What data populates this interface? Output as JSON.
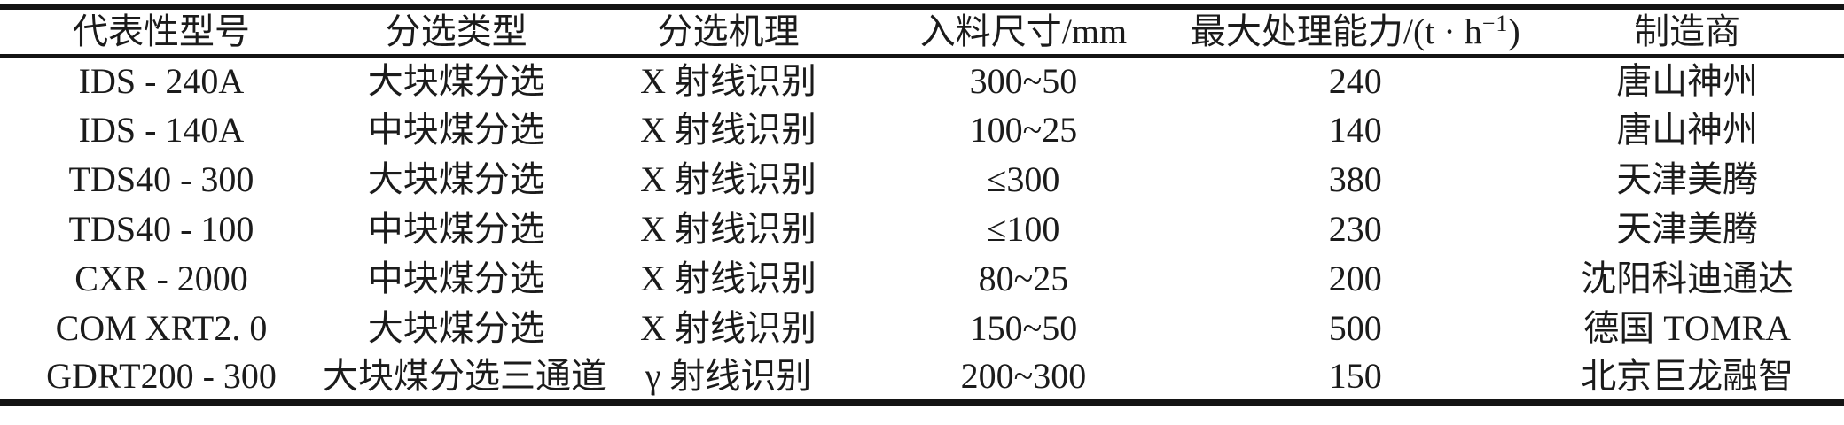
{
  "theme": {
    "rule_color": "#141414",
    "text_color": "#1b1b1b",
    "background_color": "#ffffff"
  },
  "table": {
    "header": {
      "model": "代表性型号",
      "sort_type": "分选类型",
      "mechanism": "分选机理",
      "feed_size": "入料尺寸/mm",
      "capacity_prefix": "最大处理能力/(t · h",
      "capacity_sup": "−1",
      "capacity_suffix": ")",
      "manufacturer": "制造商"
    },
    "rows": [
      [
        "IDS - 240A",
        "大块煤分选",
        "X 射线识别",
        "300~50",
        "240",
        "唐山神州"
      ],
      [
        "IDS - 140A",
        "中块煤分选",
        "X 射线识别",
        "100~25",
        "140",
        "唐山神州"
      ],
      [
        "TDS40 - 300",
        "大块煤分选",
        "X 射线识别",
        "≤300",
        "380",
        "天津美腾"
      ],
      [
        "TDS40 - 100",
        "中块煤分选",
        "X 射线识别",
        "≤100",
        "230",
        "天津美腾"
      ],
      [
        "CXR - 2000",
        "中块煤分选",
        "X 射线识别",
        "80~25",
        "200",
        "沈阳科迪通达"
      ],
      [
        "COM XRT2. 0",
        "大块煤分选",
        "X 射线识别",
        "150~50",
        "500",
        "德国 TOMRA"
      ],
      [
        "GDRT200 - 300",
        "大块煤分选三通道",
        "γ 射线识别",
        "200~300",
        "150",
        "北京巨龙融智"
      ]
    ]
  }
}
